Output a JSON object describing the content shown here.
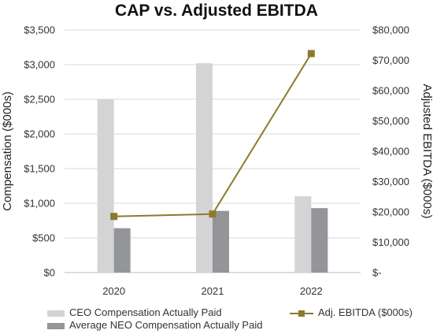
{
  "chart_data": {
    "type": "bar",
    "title": "CAP vs. Adjusted EBITDA",
    "categories": [
      "2020",
      "2021",
      "2022"
    ],
    "ylabel": "Compensation ($000s)",
    "y2label": "Adjusted EBITDA ($000s)",
    "ylim": [
      0,
      3500
    ],
    "y2lim": [
      0,
      80000
    ],
    "yticks": [
      "$0",
      "$500",
      "$1,000",
      "$1,500",
      "$2,000",
      "$2,500",
      "$3,000",
      "$3,500"
    ],
    "y2ticks": [
      "$-",
      "$10,000",
      "$20,000",
      "$30,000",
      "$40,000",
      "$50,000",
      "$60,000",
      "$70,000",
      "$80,000"
    ],
    "grid": "horizontal",
    "legend_position": "bottom",
    "series": [
      {
        "name": "CEO Compensation Actually Paid",
        "type": "bar",
        "axis": "left",
        "color": "#d4d4d4",
        "values": [
          2500,
          3020,
          1100
        ]
      },
      {
        "name": "Average NEO Compensation Actually Paid",
        "type": "bar",
        "axis": "left",
        "color": "#939598",
        "values": [
          640,
          890,
          930
        ]
      },
      {
        "name": "Adj. EBITDA ($000s)",
        "type": "line",
        "axis": "right",
        "color": "#8b7a2e",
        "marker": "square",
        "values": [
          18500,
          19300,
          72200
        ]
      }
    ]
  }
}
